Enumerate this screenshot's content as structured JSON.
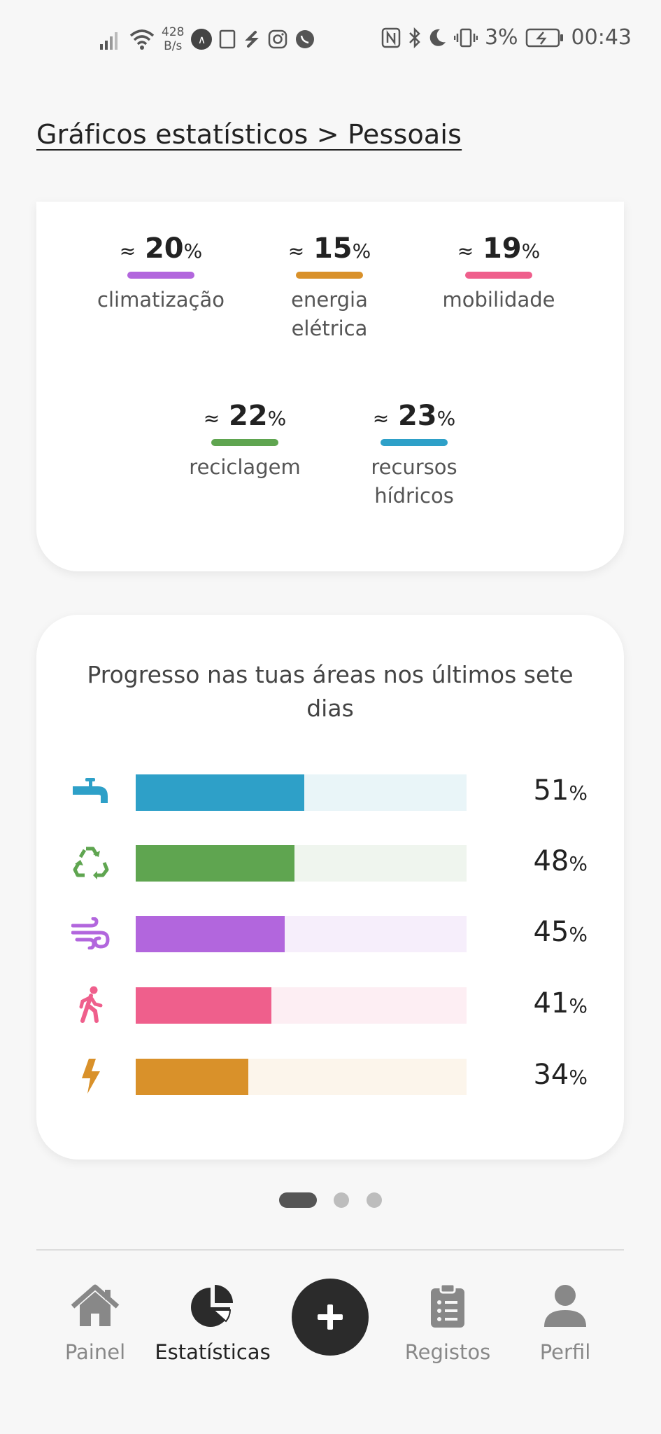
{
  "status_bar": {
    "net_rate_value": "428",
    "net_rate_unit": "B/s",
    "battery": "3%",
    "time": "00:43"
  },
  "breadcrumb": "Gráficos estatísticos > Pessoais",
  "distribution": {
    "approx_symbol": "≈",
    "items": [
      {
        "value": "20",
        "unit": "%",
        "label": "climatização",
        "color": "#b266dd"
      },
      {
        "value": "15",
        "unit": "%",
        "label": "energia elétrica",
        "color": "#d9912a"
      },
      {
        "value": "19",
        "unit": "%",
        "label": "mobilidade",
        "color": "#ef5f8c"
      },
      {
        "value": "22",
        "unit": "%",
        "label": "reciclagem",
        "color": "#5fa550"
      },
      {
        "value": "23",
        "unit": "%",
        "label": "recursos hídricos",
        "color": "#2ea0c8"
      }
    ]
  },
  "progress": {
    "title": "Progresso nas tuas áreas nos últimos sete dias",
    "rows": [
      {
        "icon": "water-tap-icon",
        "percent": 51,
        "value": "51",
        "unit": "%",
        "color": "#2ea0c8",
        "track": "#e9f5f8"
      },
      {
        "icon": "recycle-icon",
        "percent": 48,
        "value": "48",
        "unit": "%",
        "color": "#5fa550",
        "track": "#eff5ee"
      },
      {
        "icon": "wind-icon",
        "percent": 45,
        "value": "45",
        "unit": "%",
        "color": "#b266dd",
        "track": "#f6eefb"
      },
      {
        "icon": "walking-person-icon",
        "percent": 41,
        "value": "41",
        "unit": "%",
        "color": "#ef5f8c",
        "track": "#fdeef3"
      },
      {
        "icon": "lightning-bolt-icon",
        "percent": 34,
        "value": "34",
        "unit": "%",
        "color": "#d9912a",
        "track": "#fcf5eb"
      }
    ]
  },
  "pager": {
    "pages": 3,
    "active": 0
  },
  "nav": {
    "painel": "Painel",
    "estatisticas": "Estatísticas",
    "registos": "Registos",
    "perfil": "Perfil"
  }
}
